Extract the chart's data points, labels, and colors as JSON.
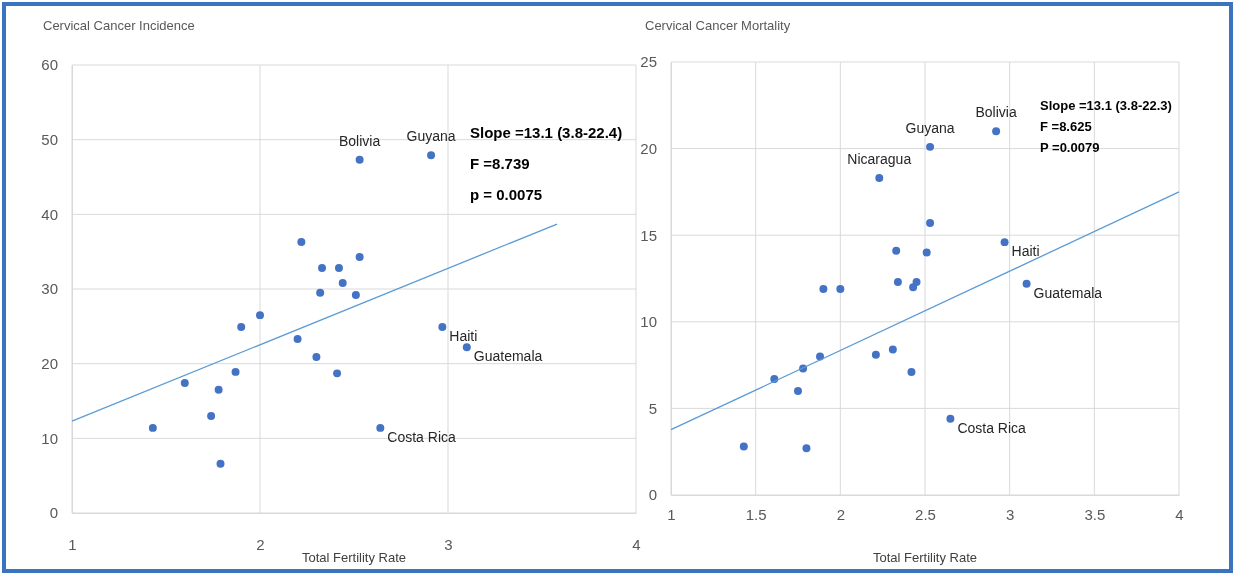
{
  "chart_data": [
    {
      "type": "scatter",
      "title": "Cervical Cancer Incidence",
      "xlabel": "Total Fertility Rate",
      "xlim": [
        1,
        4
      ],
      "xticks": [
        1,
        2,
        3,
        4
      ],
      "ylim": [
        0,
        60
      ],
      "yticks": [
        0,
        10,
        20,
        30,
        40,
        50,
        60
      ],
      "grid": true,
      "series": [
        {
          "marker": "circle",
          "color": "#4472c4",
          "x": [
            1.43,
            1.6,
            1.78,
            1.74,
            1.79,
            1.87,
            1.9,
            2.0,
            2.22,
            2.2,
            2.3,
            2.33,
            2.32,
            2.42,
            2.44,
            2.41,
            2.51,
            2.53,
            2.53,
            2.91,
            2.97,
            3.1,
            2.64
          ],
          "values": [
            11.4,
            17.4,
            16.5,
            13.0,
            6.6,
            18.9,
            24.9,
            26.5,
            36.3,
            23.3,
            20.9,
            32.8,
            29.5,
            32.8,
            30.8,
            18.7,
            29.2,
            34.3,
            47.3,
            47.9,
            24.9,
            22.2,
            11.4
          ]
        },
        {
          "type": "line",
          "color": "#5b9bd5",
          "x": [
            1,
            3.58
          ],
          "values": [
            12.3,
            38.7
          ]
        }
      ],
      "annotations": [
        {
          "text": "Bolivia",
          "x": 2.53,
          "y": 47.3
        },
        {
          "text": "Guyana",
          "x": 2.91,
          "y": 47.9
        },
        {
          "text": "Haiti",
          "x": 2.97,
          "y": 24.9
        },
        {
          "text": "Guatemala",
          "x": 3.1,
          "y": 22.2
        },
        {
          "text": "Costa Rica",
          "x": 2.64,
          "y": 11.4
        },
        "Slope =13.1 (3.8-22.4)",
        "F =8.739",
        "p = 0.0075"
      ]
    },
    {
      "type": "scatter",
      "title": "Cervical Cancer Mortality",
      "xlabel": "Total Fertility Rate",
      "xlim": [
        1,
        4
      ],
      "xticks": [
        1,
        1.5,
        2,
        2.5,
        3,
        3.5,
        4
      ],
      "ylim": [
        0,
        25
      ],
      "yticks": [
        0,
        5,
        10,
        15,
        20,
        25
      ],
      "grid": true,
      "series": [
        {
          "marker": "circle",
          "color": "#4472c4",
          "x": [
            1.43,
            1.61,
            1.75,
            1.78,
            1.8,
            1.88,
            1.9,
            2.0,
            2.21,
            2.23,
            2.31,
            2.33,
            2.34,
            2.42,
            2.43,
            2.45,
            2.51,
            2.53,
            2.53,
            2.92,
            2.97,
            3.1,
            2.65
          ],
          "values": [
            2.8,
            6.7,
            6.0,
            7.3,
            2.7,
            8.0,
            11.9,
            11.9,
            8.1,
            18.3,
            8.4,
            14.1,
            12.3,
            7.1,
            12.0,
            12.3,
            14.0,
            15.7,
            20.1,
            21.0,
            14.6,
            12.2,
            4.4
          ]
        },
        {
          "type": "line",
          "color": "#5b9bd5",
          "x": [
            1,
            4
          ],
          "values": [
            3.77,
            17.5
          ]
        }
      ],
      "annotations": [
        {
          "text": "Nicaragua",
          "x": 2.23,
          "y": 18.3
        },
        {
          "text": "Guyana",
          "x": 2.53,
          "y": 20.1
        },
        {
          "text": "Bolivia",
          "x": 2.92,
          "y": 21.0
        },
        {
          "text": "Haiti",
          "x": 2.97,
          "y": 14.6
        },
        {
          "text": "Guatemala",
          "x": 3.1,
          "y": 12.2
        },
        {
          "text": "Costa Rica",
          "x": 2.65,
          "y": 4.4
        },
        "Slope =13.1 (3.8-22.3)",
        "F =8.625",
        "P =0.0079"
      ]
    }
  ]
}
